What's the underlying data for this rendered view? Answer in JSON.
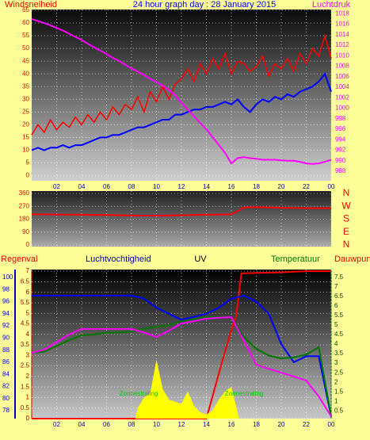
{
  "chart_data": [
    {
      "type": "line",
      "title": "24 hour graph day : 28 January 2015",
      "ylabel": "Windsnelheid",
      "y2label": "Luchtdruk",
      "x": [
        0,
        0.5,
        1,
        1.5,
        2,
        2.5,
        3,
        3.5,
        4,
        4.5,
        5,
        5.5,
        6,
        6.5,
        7,
        7.5,
        8,
        8.5,
        9,
        9.5,
        10,
        10.5,
        11,
        11.5,
        12,
        12.5,
        13,
        13.5,
        14,
        14.5,
        15,
        15.5,
        16,
        16.5,
        17,
        17.5,
        18,
        18.5,
        19,
        19.5,
        20,
        20.5,
        21,
        21.5,
        22,
        22.5,
        23,
        23.5,
        24
      ],
      "series": [
        {
          "color": "#ff0000",
          "values": [
            16,
            20,
            17,
            22,
            18,
            21,
            19,
            23,
            20,
            24,
            21,
            25,
            22,
            27,
            24,
            28,
            26,
            31,
            25,
            33,
            29,
            35,
            30,
            36,
            38,
            42,
            37,
            44,
            40,
            46,
            42,
            48,
            40,
            45,
            44,
            41,
            43,
            47,
            39,
            44,
            42,
            46,
            41,
            48,
            44,
            50,
            47,
            55,
            46
          ]
        },
        {
          "color": "#0000ff",
          "values": [
            10,
            11,
            10,
            11,
            11,
            12,
            11,
            12,
            12,
            13,
            14,
            15,
            15,
            16,
            16,
            17,
            18,
            19,
            19,
            20,
            21,
            22,
            22,
            24,
            24,
            25,
            26,
            26,
            27,
            27,
            28,
            29,
            28,
            30,
            27,
            25,
            28,
            30,
            29,
            31,
            30,
            32,
            31,
            33,
            34,
            35,
            37,
            40,
            33
          ]
        },
        {
          "color": "#ff00ff",
          "axis": "y2",
          "values": [
            1017,
            1016.6,
            1016.2,
            1015.8,
            1015.3,
            1014.8,
            1014.2,
            1013.6,
            1013,
            1012.3,
            1011.6,
            1011,
            1010.3,
            1009.6,
            1009,
            1008.3,
            1007.6,
            1007,
            1006.3,
            1005.6,
            1005,
            1004.3,
            1003.5,
            1002.5,
            1001,
            999.8,
            998.5,
            997.2,
            996,
            994.5,
            993,
            991.5,
            989.5,
            990.5,
            990.7,
            990.5,
            990.4,
            990.2,
            990.2,
            990.2,
            990.1,
            990,
            990,
            989.8,
            989.5,
            989.4,
            989.5,
            989.8,
            990.2
          ]
        }
      ],
      "xlim": [
        0,
        24
      ],
      "xticks": [
        {
          "value": 2,
          "label": "02"
        },
        {
          "value": 4,
          "label": "04"
        },
        {
          "value": 6,
          "label": "06"
        },
        {
          "value": 8,
          "label": "08"
        },
        10,
        12,
        14,
        16,
        18,
        20,
        22,
        {
          "value": 24,
          "label": "00"
        }
      ],
      "ylim": [
        -2,
        65.3
      ],
      "yticks": [
        0,
        5,
        10,
        15,
        20,
        25,
        30,
        35,
        40,
        45,
        50,
        55,
        60,
        65
      ],
      "y2lim": [
        986.2,
        1018.8
      ],
      "y2ticks": [
        988,
        990,
        992,
        994,
        996,
        998,
        1000,
        1002,
        1004,
        1006,
        1008,
        1010,
        1012,
        1014,
        1016,
        1018
      ],
      "grid": true
    },
    {
      "type": "line",
      "x": [
        0,
        1,
        2,
        3,
        4,
        5,
        6,
        7,
        8,
        9,
        10,
        11,
        12,
        13,
        14,
        15,
        16,
        17,
        18,
        19,
        20,
        21,
        22,
        23,
        24
      ],
      "series": [
        {
          "color": "#ff0000",
          "values": [
            215,
            214,
            213,
            212,
            212,
            210,
            210,
            208,
            206,
            205,
            205,
            207,
            208,
            210,
            212,
            213,
            214,
            262,
            265,
            262,
            260,
            259,
            258,
            257,
            258
          ]
        }
      ],
      "xlim": [
        0,
        24
      ],
      "ylim": [
        -11,
        377
      ],
      "yticks": [
        0,
        90,
        180,
        270,
        360
      ],
      "y2lim": [
        -11,
        377
      ],
      "y2ticks": [
        {
          "value": 360,
          "label": "N"
        },
        {
          "value": 270,
          "label": "W"
        },
        {
          "value": 180,
          "label": "S"
        },
        {
          "value": 90,
          "label": "E"
        },
        {
          "value": 0,
          "label": "N"
        }
      ],
      "grid": true
    },
    {
      "type": "line",
      "uv_label": "UV",
      "annotations": [
        "Zonnestraling",
        "Zonnestraling"
      ],
      "series": [
        {
          "name": "Regenval",
          "color": "#ff0000",
          "axis": "y3",
          "x": [
            0,
            14,
            14.7,
            15.4,
            16,
            16.4,
            16.8,
            20,
            22,
            24
          ],
          "values": [
            0,
            0,
            1.5,
            3,
            4.2,
            4.9,
            6.9,
            6.95,
            7,
            7
          ]
        },
        {
          "name": "Luchtvochtigheid",
          "color": "#0000ff",
          "x": [
            0,
            1,
            2,
            3,
            4,
            5,
            6,
            7,
            8,
            9,
            10,
            11,
            12,
            13,
            14,
            15,
            16,
            17,
            18,
            19,
            20,
            21,
            22,
            23,
            24
          ],
          "values": [
            97,
            97,
            97,
            97,
            97,
            97,
            97,
            97,
            97,
            96.5,
            95,
            94,
            93,
            93.5,
            94,
            95,
            96.5,
            97,
            96,
            94,
            89,
            86,
            87,
            87,
            77
          ]
        },
        {
          "name": "Temperatuur",
          "color": "#007700",
          "axis": "y2",
          "x": [
            0,
            1,
            2,
            3,
            4,
            5,
            6,
            7,
            8,
            9,
            10,
            11,
            12,
            13,
            14,
            15,
            16,
            17,
            18,
            19,
            20,
            21,
            22,
            23,
            24
          ],
          "values": [
            3.54,
            3.6,
            3.9,
            4.2,
            4.46,
            4.5,
            4.6,
            4.6,
            4.66,
            4.8,
            4.91,
            5.0,
            5.2,
            5.3,
            5.41,
            5.41,
            5.41,
            4.37,
            3.75,
            3.4,
            3.25,
            3.3,
            3.45,
            3.83,
            0.22
          ]
        },
        {
          "name": "Dauwpunt",
          "color": "#ff00ff",
          "axis": "y2",
          "x": [
            0,
            1,
            2,
            3,
            4,
            5,
            6,
            7,
            8,
            9,
            10,
            11,
            12,
            13,
            14,
            15,
            16,
            17,
            18,
            19,
            20,
            21,
            22,
            23,
            24
          ],
          "values": [
            3.54,
            3.7,
            4.1,
            4.5,
            4.79,
            4.79,
            4.79,
            4.79,
            4.79,
            4.6,
            4.37,
            4.7,
            5.08,
            5.2,
            5.33,
            5.38,
            5.41,
            4.17,
            2.92,
            2.7,
            2.51,
            2.3,
            2.09,
            1.26,
            0.22
          ]
        },
        {
          "color": "#ffff00",
          "axis": "y3",
          "area": true,
          "x": [
            8.3,
            8.5,
            9,
            9.5,
            10,
            10.5,
            11,
            11.5,
            12,
            12.5,
            13,
            13.5,
            14,
            14.5,
            15,
            15.5,
            16,
            16.5,
            16.6
          ],
          "values": [
            0,
            0.5,
            1.0,
            1.2,
            2.8,
            1.4,
            0.9,
            0.8,
            0.7,
            1.3,
            0.6,
            0.3,
            0.2,
            0.4,
            0.9,
            1.3,
            1.5,
            0.3,
            0
          ]
        }
      ],
      "xlim": [
        0,
        24
      ],
      "xticks": [
        {
          "value": 2,
          "label": "02"
        },
        {
          "value": 4,
          "label": "04"
        },
        {
          "value": 6,
          "label": "06"
        },
        {
          "value": 8,
          "label": "08"
        },
        10,
        12,
        14,
        16,
        18,
        20,
        22,
        {
          "value": 24,
          "label": "00"
        }
      ],
      "ylim": [
        76.7,
        101.3
      ],
      "yticks": [
        78,
        80,
        82,
        84,
        86,
        88,
        90,
        92,
        94,
        96,
        98,
        100
      ],
      "y2lim": [
        0.1,
        7.9
      ],
      "y2ticks": [
        0.5,
        1,
        1.5,
        2,
        2.5,
        3,
        3.5,
        4,
        4.5,
        5,
        5.5,
        6,
        6.5,
        7,
        7.5
      ],
      "y3lim": [
        0,
        7.08
      ],
      "y3ticks": [
        0,
        0.5,
        1,
        1.5,
        2,
        2.5,
        3,
        3.5,
        4,
        4.5,
        5,
        5.5,
        6,
        6.5,
        7
      ],
      "grid": true
    }
  ]
}
